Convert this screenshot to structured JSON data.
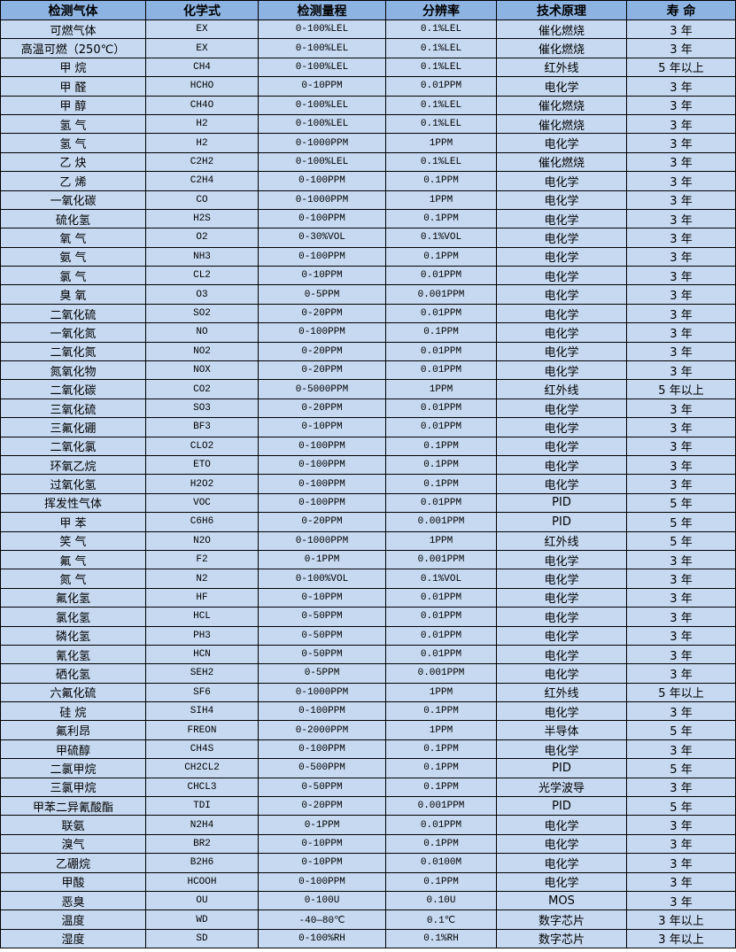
{
  "colors": {
    "header_bg": "#8db3e2",
    "row_bg": "#c6d9f1",
    "border": "#000000"
  },
  "table": {
    "headers": [
      "检测气体",
      "化学式",
      "检测量程",
      "分辨率",
      "技术原理",
      "寿 命"
    ],
    "rows": [
      [
        "可燃气体",
        "EX",
        "0-100%LEL",
        "0.1%LEL",
        "催化燃烧",
        "3 年"
      ],
      [
        "高温可燃（250℃）",
        "EX",
        "0-100%LEL",
        "0.1%LEL",
        "催化燃烧",
        "3 年"
      ],
      [
        "甲 烷",
        "CH4",
        "0-100%LEL",
        "0.1%LEL",
        "红外线",
        "5 年以上"
      ],
      [
        "甲 醛",
        "HCHO",
        "0-10PPM",
        "0.01PPM",
        "电化学",
        "3 年"
      ],
      [
        "甲 醇",
        "CH4O",
        "0-100%LEL",
        "0.1%LEL",
        "催化燃烧",
        "3 年"
      ],
      [
        "氢 气",
        "H2",
        "0-100%LEL",
        "0.1%LEL",
        "催化燃烧",
        "3 年"
      ],
      [
        "氢 气",
        "H2",
        "0-1000PPM",
        "1PPM",
        "电化学",
        "3 年"
      ],
      [
        "乙 炔",
        "C2H2",
        "0-100%LEL",
        "0.1%LEL",
        "催化燃烧",
        "3 年"
      ],
      [
        "乙 烯",
        "C2H4",
        "0-100PPM",
        "0.1PPM",
        "电化学",
        "3 年"
      ],
      [
        "一氧化碳",
        "CO",
        "0-1000PPM",
        "1PPM",
        "电化学",
        "3 年"
      ],
      [
        "硫化氢",
        "H2S",
        "0-100PPM",
        "0.1PPM",
        "电化学",
        "3 年"
      ],
      [
        "氧 气",
        "O2",
        "0-30%VOL",
        "0.1%VOL",
        "电化学",
        "3 年"
      ],
      [
        "氨 气",
        "NH3",
        "0-100PPM",
        "0.1PPM",
        "电化学",
        "3 年"
      ],
      [
        "氯 气",
        "CL2",
        "0-10PPM",
        "0.01PPM",
        "电化学",
        "3 年"
      ],
      [
        "臭 氧",
        "O3",
        "0-5PPM",
        "0.001PPM",
        "电化学",
        "3 年"
      ],
      [
        "二氧化硫",
        "SO2",
        "0-20PPM",
        "0.01PPM",
        "电化学",
        "3 年"
      ],
      [
        "一氧化氮",
        "NO",
        "0-100PPM",
        "0.1PPM",
        "电化学",
        "3 年"
      ],
      [
        "二氧化氮",
        "NO2",
        "0-20PPM",
        "0.01PPM",
        "电化学",
        "3 年"
      ],
      [
        "氮氧化物",
        "NOX",
        "0-20PPM",
        "0.01PPM",
        "电化学",
        "3 年"
      ],
      [
        "二氧化碳",
        "CO2",
        "0-5000PPM",
        "1PPM",
        "红外线",
        "5 年以上"
      ],
      [
        "三氧化硫",
        "SO3",
        "0-20PPM",
        "0.01PPM",
        "电化学",
        "3 年"
      ],
      [
        "三氟化硼",
        "BF3",
        "0-10PPM",
        "0.01PPM",
        "电化学",
        "3 年"
      ],
      [
        "二氧化氯",
        "CLO2",
        "0-100PPM",
        "0.1PPM",
        "电化学",
        "3 年"
      ],
      [
        "环氧乙烷",
        "ETO",
        "0-100PPM",
        "0.1PPM",
        "电化学",
        "3 年"
      ],
      [
        "过氧化氢",
        "H2O2",
        "0-100PPM",
        "0.1PPM",
        "电化学",
        "3 年"
      ],
      [
        "挥发性气体",
        "VOC",
        "0-100PPM",
        "0.01PPM",
        "PID",
        "5 年"
      ],
      [
        "甲 苯",
        "C6H6",
        "0-20PPM",
        "0.001PPM",
        "PID",
        "5 年"
      ],
      [
        "笑 气",
        "N2O",
        "0-1000PPM",
        "1PPM",
        "红外线",
        "5 年"
      ],
      [
        "氟 气",
        "F2",
        "0-1PPM",
        "0.001PPM",
        "电化学",
        "3 年"
      ],
      [
        "氮 气",
        "N2",
        "0-100%VOL",
        "0.1%VOL",
        "电化学",
        "3 年"
      ],
      [
        "氟化氢",
        "HF",
        "0-10PPM",
        "0.01PPM",
        "电化学",
        "3 年"
      ],
      [
        "氯化氢",
        "HCL",
        "0-50PPM",
        "0.01PPM",
        "电化学",
        "3 年"
      ],
      [
        "磷化氢",
        "PH3",
        "0-50PPM",
        "0.01PPM",
        "电化学",
        "3 年"
      ],
      [
        "氰化氢",
        "HCN",
        "0-50PPM",
        "0.01PPM",
        "电化学",
        "3 年"
      ],
      [
        "硒化氢",
        "SEH2",
        "0-5PPM",
        "0.001PPM",
        "电化学",
        "3 年"
      ],
      [
        "六氟化硫",
        "SF6",
        "0-1000PPM",
        "1PPM",
        "红外线",
        "5 年以上"
      ],
      [
        "硅 烷",
        "SIH4",
        "0-100PPM",
        "0.1PPM",
        "电化学",
        "3 年"
      ],
      [
        "氟利昂",
        "FREON",
        "0-2000PPM",
        "1PPM",
        "半导体",
        "5 年"
      ],
      [
        "甲硫醇",
        "CH4S",
        "0-100PPM",
        "0.1PPM",
        "电化学",
        "3 年"
      ],
      [
        "二氯甲烷",
        "CH2CL2",
        "0-500PPM",
        "0.1PPM",
        "PID",
        "5 年"
      ],
      [
        "三氯甲烷",
        "CHCL3",
        "0-50PPM",
        "0.1PPM",
        "光学波导",
        "3 年"
      ],
      [
        "甲苯二异氰酸酯",
        "TDI",
        "0-20PPM",
        "0.001PPM",
        "PID",
        "5 年"
      ],
      [
        "联氨",
        "N2H4",
        "0-1PPM",
        "0.01PPM",
        "电化学",
        "3 年"
      ],
      [
        "溴气",
        "BR2",
        "0-10PPM",
        "0.1PPM",
        "电化学",
        "3 年"
      ],
      [
        "乙硼烷",
        "B2H6",
        "0-10PPM",
        "0.0100M",
        "电化学",
        "3 年"
      ],
      [
        "甲酸",
        "HCOOH",
        "0-100PPM",
        "0.1PPM",
        "电化学",
        "3 年"
      ],
      [
        "恶臭",
        "OU",
        "0-100U",
        "0.10U",
        "MOS",
        "3 年"
      ],
      [
        "温度",
        "WD",
        "-40—80℃",
        "0.1℃",
        "数字芯片",
        "3 年以上"
      ],
      [
        "湿度",
        "SD",
        "0-100%RH",
        "0.1%RH",
        "数字芯片",
        "3 年以上"
      ]
    ]
  }
}
